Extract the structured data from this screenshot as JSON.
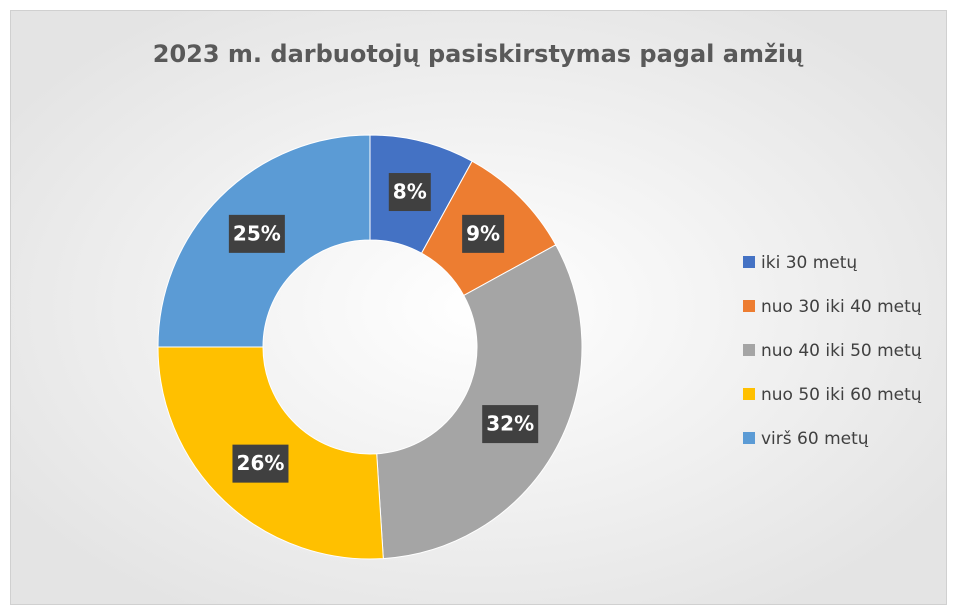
{
  "chart_data": {
    "type": "donut",
    "title": "2023 m. darbuotojų pasiskirstymas pagal amžių",
    "categories": [
      "iki 30 metų",
      "nuo 30 iki 40 metų",
      "nuo 40 iki 50 metų",
      "nuo 50 iki 60 metų",
      "virš 60 metų"
    ],
    "values": [
      8,
      9,
      32,
      26,
      25
    ],
    "value_labels": [
      "8%",
      "9%",
      "32%",
      "26%",
      "25%"
    ],
    "colors": [
      "#4472c4",
      "#ed7d31",
      "#a5a5a5",
      "#ffc000",
      "#5b9bd5"
    ],
    "legend": "right"
  }
}
